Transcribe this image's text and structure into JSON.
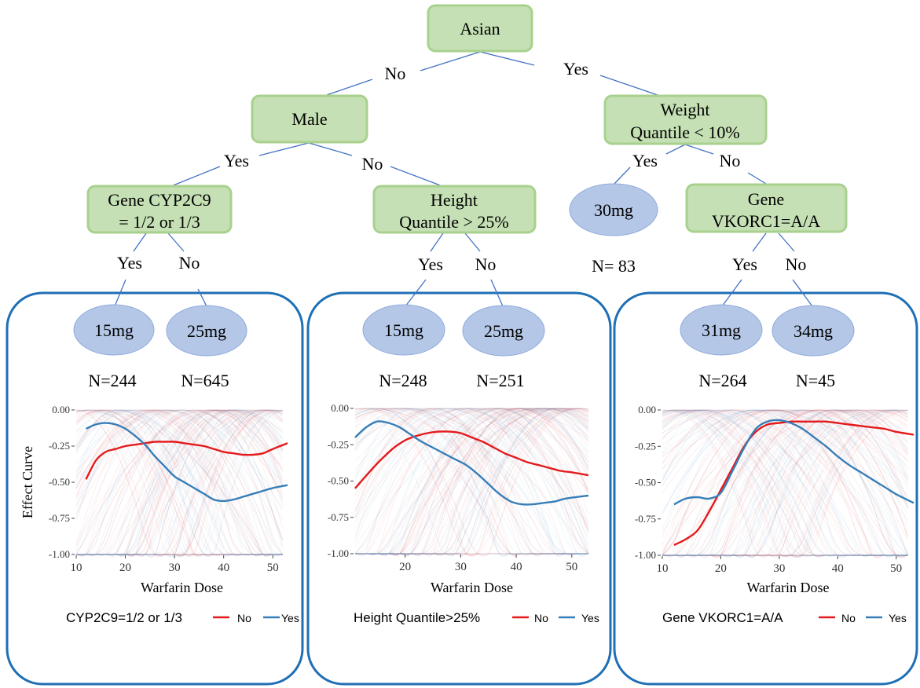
{
  "tree": {
    "root": "Asian",
    "male": "Male",
    "weight": [
      "Weight",
      "Quantile < 10%"
    ],
    "cyp": [
      "Gene CYP2C9",
      "= 1/2 or 1/3"
    ],
    "height": [
      "Height",
      "Quantile > 25%"
    ],
    "vkorc": [
      "Gene",
      "VKORC1=A/A"
    ],
    "leaf_30mg": "30mg",
    "n_30mg": "N= 83",
    "edges": {
      "root_no": "No",
      "root_yes": "Yes",
      "male_yes": "Yes",
      "male_no": "No",
      "weight_yes": "Yes",
      "weight_no": "No",
      "cyp_yes": "Yes",
      "cyp_no": "No",
      "height_yes": "Yes",
      "height_no": "No",
      "vkorc_yes": "Yes",
      "vkorc_no": "No"
    }
  },
  "panels": [
    {
      "leaf_yes": "15mg",
      "leaf_no": "25mg",
      "n_yes": "N=244",
      "n_no": "N=645",
      "legend_title": "CYP2C9=1/2 or 1/3"
    },
    {
      "leaf_yes": "15mg",
      "leaf_no": "25mg",
      "n_yes": "N=248",
      "n_no": "N=251",
      "legend_title": "Height Quantile>25%"
    },
    {
      "leaf_yes": "31mg",
      "leaf_no": "34mg",
      "n_yes": "N=264",
      "n_no": "N=45",
      "legend_title": "Gene VKORC1=A/A"
    }
  ],
  "legend": {
    "no": "No",
    "yes": "Yes"
  },
  "colors": {
    "node_fill": "#c5e0b4",
    "node_stroke": "#a9d18e",
    "leaf_fill": "#b4c7e7",
    "panel_border": "#1f6fb5",
    "edge": "#4472c4",
    "no_series": "#e41a1c",
    "yes_series": "#377eb8"
  },
  "chart_data": [
    {
      "type": "line",
      "xlabel": "Warfarin Dose",
      "ylabel": "Effect Curve",
      "xlim": [
        10,
        53
      ],
      "ylim": [
        -1.0,
        0.0
      ],
      "xticks": [
        10,
        20,
        30,
        40,
        50
      ],
      "yticks": [
        0.0,
        -0.25,
        -0.5,
        -0.75,
        -1.0
      ],
      "ytick_labels": [
        "0.00",
        "-0.25",
        "-0.50",
        "-0.75",
        "-1.00"
      ],
      "legend_position": "bottom",
      "series": [
        {
          "name": "No",
          "x": [
            12,
            14,
            16,
            18,
            20,
            22,
            24,
            26,
            28,
            30,
            32,
            34,
            36,
            38,
            40,
            42,
            44,
            46,
            48,
            50,
            53
          ],
          "y": [
            -0.48,
            -0.35,
            -0.29,
            -0.27,
            -0.25,
            -0.24,
            -0.23,
            -0.22,
            -0.22,
            -0.22,
            -0.23,
            -0.24,
            -0.25,
            -0.27,
            -0.29,
            -0.3,
            -0.31,
            -0.31,
            -0.3,
            -0.27,
            -0.23
          ]
        },
        {
          "name": "Yes",
          "x": [
            12,
            14,
            16,
            18,
            20,
            22,
            24,
            26,
            28,
            30,
            32,
            34,
            36,
            38,
            40,
            42,
            44,
            46,
            48,
            50,
            53
          ],
          "y": [
            -0.13,
            -0.1,
            -0.09,
            -0.1,
            -0.13,
            -0.18,
            -0.24,
            -0.32,
            -0.39,
            -0.46,
            -0.5,
            -0.54,
            -0.58,
            -0.62,
            -0.63,
            -0.62,
            -0.6,
            -0.58,
            -0.56,
            -0.54,
            -0.52
          ]
        }
      ]
    },
    {
      "type": "line",
      "xlabel": "Warfarin Dose",
      "ylabel": "",
      "xlim": [
        11,
        53
      ],
      "ylim": [
        -1.0,
        0.0
      ],
      "xticks": [
        20,
        30,
        40,
        50
      ],
      "yticks": [
        0.0,
        -0.25,
        -0.5,
        -0.75,
        -1.0
      ],
      "ytick_labels": [
        "0.00",
        "-0.25",
        "-0.50",
        "-0.75",
        "-1.00"
      ],
      "legend_position": "bottom",
      "series": [
        {
          "name": "No",
          "x": [
            11,
            14,
            16,
            18,
            20,
            22,
            24,
            26,
            28,
            30,
            32,
            34,
            36,
            38,
            40,
            42,
            44,
            46,
            48,
            50,
            53
          ],
          "y": [
            -0.55,
            -0.42,
            -0.34,
            -0.27,
            -0.22,
            -0.19,
            -0.17,
            -0.16,
            -0.16,
            -0.17,
            -0.2,
            -0.23,
            -0.27,
            -0.31,
            -0.34,
            -0.37,
            -0.39,
            -0.41,
            -0.43,
            -0.44,
            -0.46
          ]
        },
        {
          "name": "Yes",
          "x": [
            11,
            13,
            15,
            17,
            19,
            21,
            23,
            25,
            27,
            29,
            31,
            33,
            35,
            37,
            39,
            41,
            43,
            45,
            47,
            49,
            53
          ],
          "y": [
            -0.2,
            -0.13,
            -0.09,
            -0.1,
            -0.13,
            -0.18,
            -0.23,
            -0.27,
            -0.31,
            -0.35,
            -0.39,
            -0.45,
            -0.52,
            -0.59,
            -0.64,
            -0.66,
            -0.66,
            -0.65,
            -0.64,
            -0.62,
            -0.6
          ]
        }
      ]
    },
    {
      "type": "line",
      "xlabel": "Warfarin Dose",
      "ylabel": "",
      "xlim": [
        10,
        53
      ],
      "ylim": [
        -1.0,
        0.0
      ],
      "xticks": [
        10,
        20,
        30,
        40,
        50
      ],
      "yticks": [
        0.0,
        -0.25,
        -0.5,
        -0.75,
        -1.0
      ],
      "ytick_labels": [
        "0.00",
        "-0.25",
        "-0.50",
        "-0.75",
        "-1.00"
      ],
      "legend_position": "bottom",
      "series": [
        {
          "name": "No",
          "x": [
            12,
            14,
            16,
            18,
            20,
            22,
            24,
            26,
            28,
            30,
            32,
            34,
            36,
            38,
            40,
            42,
            44,
            46,
            48,
            50,
            53
          ],
          "y": [
            -0.93,
            -0.89,
            -0.83,
            -0.7,
            -0.55,
            -0.4,
            -0.25,
            -0.15,
            -0.1,
            -0.09,
            -0.08,
            -0.08,
            -0.08,
            -0.08,
            -0.09,
            -0.1,
            -0.11,
            -0.12,
            -0.13,
            -0.15,
            -0.17
          ]
        },
        {
          "name": "Yes",
          "x": [
            12,
            14,
            16,
            18,
            20,
            22,
            24,
            26,
            28,
            30,
            32,
            34,
            36,
            38,
            40,
            42,
            44,
            46,
            48,
            50,
            53
          ],
          "y": [
            -0.65,
            -0.61,
            -0.6,
            -0.61,
            -0.57,
            -0.42,
            -0.26,
            -0.13,
            -0.08,
            -0.07,
            -0.09,
            -0.13,
            -0.19,
            -0.25,
            -0.32,
            -0.38,
            -0.43,
            -0.48,
            -0.53,
            -0.58,
            -0.64
          ]
        }
      ]
    }
  ]
}
